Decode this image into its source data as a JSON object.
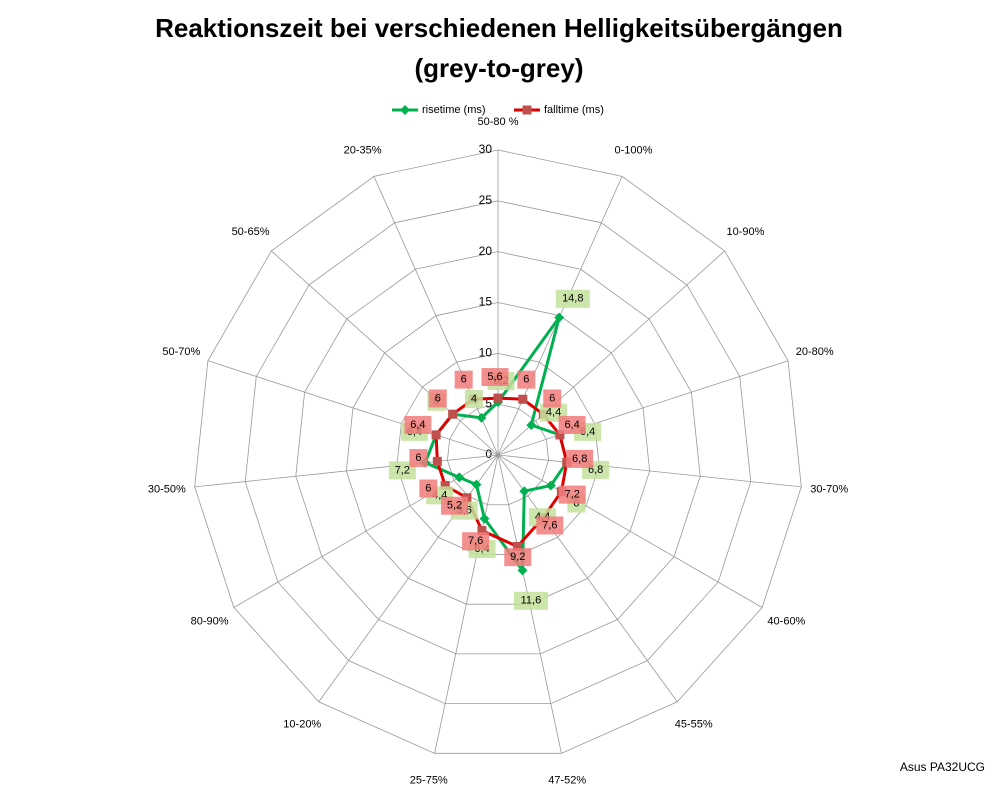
{
  "chart_data": {
    "type": "radar",
    "title": "Reaktionszeit bei verschiedenen Helligkeitsübergängen",
    "subtitle": "(grey-to-grey)",
    "categories": [
      "50-80 %",
      "0-100%",
      "10-90%",
      "20-80%",
      "30-70%",
      "40-60%",
      "45-55%",
      "47-52%",
      "25-75%",
      "10-20%",
      "80-90%",
      "30-50%",
      "50-70%",
      "50-65%",
      "20-35%"
    ],
    "series": [
      {
        "name": "risetime (ms)",
        "color": "#00b050",
        "label_color": "#c3e19b",
        "values": [
          5.2,
          14.8,
          4.4,
          6.4,
          6.8,
          6,
          4.4,
          11.6,
          6.4,
          3.6,
          4.4,
          7.2,
          6.4,
          6,
          4
        ],
        "value_labels": [
          "5,2",
          "14,8",
          "4,4",
          "6,4",
          "6,8",
          "6",
          "4,4",
          "11,6",
          "6,4",
          "3,6",
          "4,4",
          "7,2",
          "6,4",
          "6",
          "4"
        ]
      },
      {
        "name": "falltime (ms)",
        "color": "#e00000",
        "marker_color": "#c0504d",
        "label_color": "#f27b7b",
        "values": [
          5.6,
          6,
          6,
          6.4,
          6.8,
          7.2,
          7.6,
          9.2,
          7.6,
          5.2,
          6,
          6,
          6.4,
          6,
          6
        ],
        "value_labels": [
          "5,6",
          "6",
          "6",
          "6,4",
          "6,8",
          "7,2",
          "7,6",
          "9,2",
          "7,6",
          "5,2",
          "6",
          "6",
          "6,4",
          "6",
          "6"
        ]
      }
    ],
    "ylim": [
      0,
      30
    ],
    "yticks": [
      0,
      5,
      10,
      15,
      20,
      25,
      30
    ],
    "grid": true,
    "legend": "top",
    "footer": "Asus PA32UCG"
  }
}
